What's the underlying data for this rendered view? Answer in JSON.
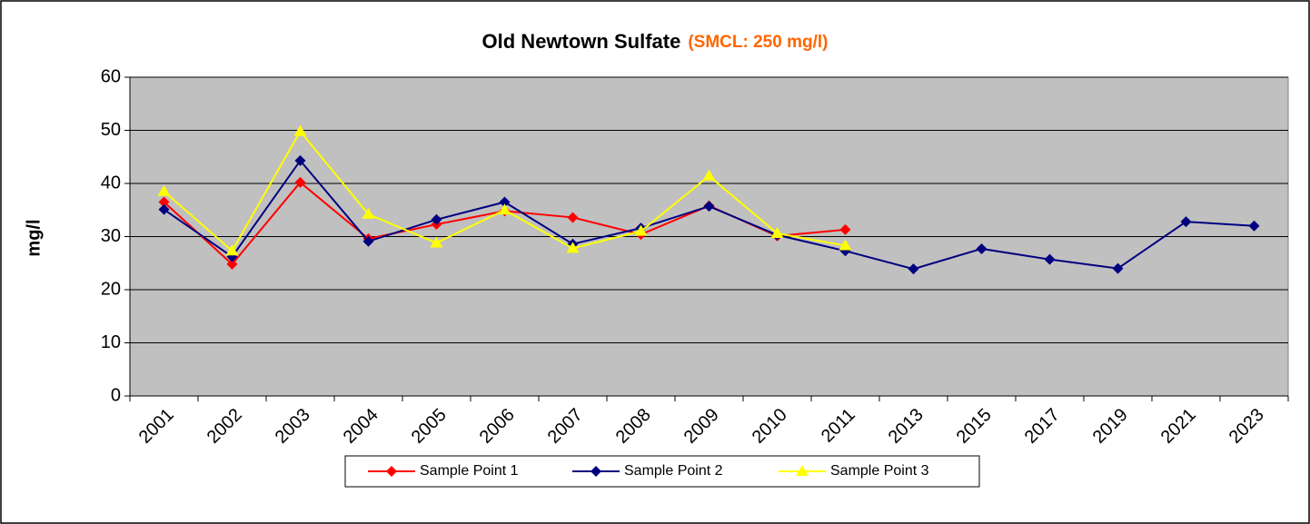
{
  "chart_data": {
    "type": "line",
    "title": "Old Newtown Sulfate",
    "subtitle": "(SMCL: 250 mg/l)",
    "y_label": "mg/l",
    "categories": [
      "2001",
      "2002",
      "2003",
      "2004",
      "2005",
      "2006",
      "2007",
      "2008",
      "2009",
      "2010",
      "2011",
      "2013",
      "2015",
      "2017",
      "2019",
      "2021",
      "2023"
    ],
    "series": [
      {
        "name": "Sample Point 1",
        "color": "#ff0000",
        "marker": "diamond",
        "values": [
          36.5,
          24.8,
          40.2,
          29.6,
          32.3,
          34.8,
          33.6,
          30.4,
          35.8,
          30.1,
          31.3,
          null,
          null,
          null,
          null,
          null,
          null
        ]
      },
      {
        "name": "Sample Point 2",
        "color": "#000080",
        "marker": "diamond",
        "values": [
          35.1,
          26.2,
          44.3,
          29.1,
          33.2,
          36.5,
          28.6,
          31.6,
          35.7,
          30.3,
          27.3,
          23.9,
          27.7,
          25.7,
          24.0,
          32.8,
          32.0
        ]
      },
      {
        "name": "Sample Point 3",
        "color": "#ffff00",
        "marker": "triangle",
        "values": [
          38.5,
          27.3,
          49.8,
          34.2,
          28.8,
          35.0,
          27.8,
          31.0,
          41.4,
          30.6,
          28.3,
          null,
          null,
          null,
          null,
          null,
          null
        ]
      }
    ],
    "ylim": [
      0,
      60
    ],
    "yticks": [
      0,
      10,
      20,
      30,
      40,
      50,
      60
    ],
    "grid": true,
    "legend": "bottom",
    "plot_background": "#c0c0c0",
    "subtitle_color": "#ff6600"
  }
}
